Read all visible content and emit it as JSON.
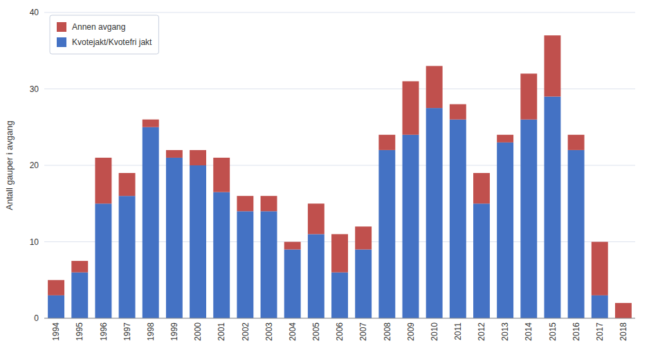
{
  "chart_data": {
    "type": "bar",
    "stacked": true,
    "categories": [
      "1994",
      "1995",
      "1996",
      "1997",
      "1998",
      "1999",
      "2000",
      "2001",
      "2002",
      "2003",
      "2004",
      "2005",
      "2006",
      "2007",
      "2008",
      "2009",
      "2010",
      "2011",
      "2012",
      "2013",
      "2014",
      "2015",
      "2016",
      "2017",
      "2018"
    ],
    "series": [
      {
        "name": "Kvotejakt/Kvotefri jakt",
        "color": "#4472C4",
        "values": [
          3,
          6,
          15,
          16,
          25,
          21,
          20,
          16.5,
          14,
          14,
          9,
          11,
          6,
          9,
          22,
          24,
          27.5,
          26,
          15,
          23,
          26,
          29,
          22,
          3,
          0
        ]
      },
      {
        "name": "Annen avgang",
        "color": "#C0504D",
        "values": [
          2,
          1.5,
          6,
          3,
          1,
          1,
          2,
          4.5,
          2,
          2,
          1,
          4,
          5,
          3,
          2,
          7,
          5.5,
          2,
          4,
          1,
          6,
          8,
          2,
          7,
          2
        ]
      }
    ],
    "ylabel": "Antall gauper i avgang",
    "ylim": [
      0,
      40
    ],
    "yticks": [
      0,
      10,
      20,
      30,
      40
    ],
    "grid": true,
    "legend": "upper left"
  }
}
